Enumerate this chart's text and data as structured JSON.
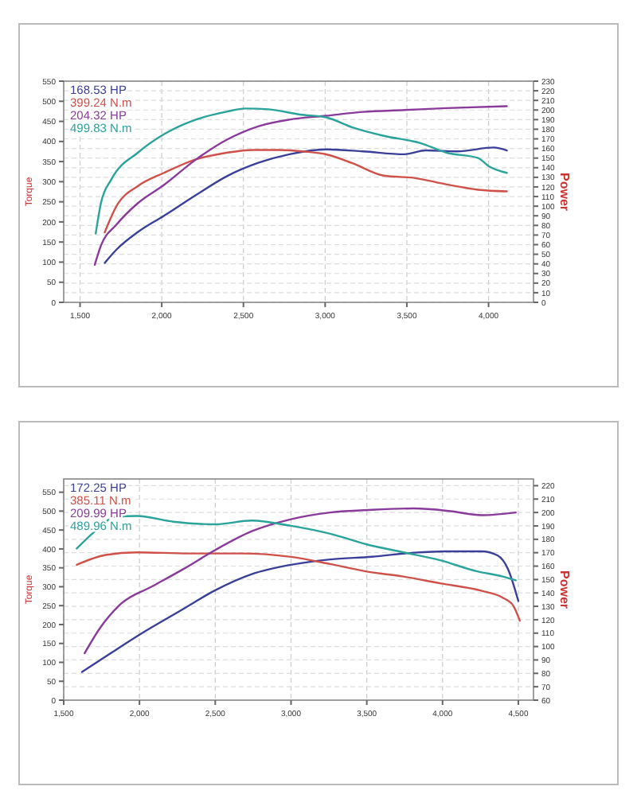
{
  "chart_data": [
    {
      "type": "line",
      "ylabel": "Torque",
      "y2label": "Power",
      "xlim": [
        1400,
        4275
      ],
      "ylim": [
        0,
        550
      ],
      "y2lim": [
        0,
        230
      ],
      "grid": true,
      "marker": "none",
      "line_style": "solid",
      "xticks": [
        {
          "value": 1500,
          "label": "1,500"
        },
        {
          "value": 2000,
          "label": "2,000"
        },
        {
          "value": 2500,
          "label": "2,500"
        },
        {
          "value": 3000,
          "label": "3,000"
        },
        {
          "value": 3500,
          "label": "3,500"
        },
        {
          "value": 4000,
          "label": "4,000"
        }
      ],
      "yticks": [
        0,
        50,
        100,
        150,
        200,
        250,
        300,
        350,
        400,
        450,
        500,
        550
      ],
      "y2ticks": [
        0,
        10,
        20,
        30,
        40,
        50,
        60,
        70,
        80,
        90,
        100,
        110,
        120,
        130,
        140,
        150,
        160,
        170,
        180,
        190,
        200,
        210,
        220,
        230
      ],
      "series": [
        {
          "name": "168.53 HP",
          "color": "#3a3f9a",
          "axis": "y2",
          "x": [
            1651,
            1724,
            1853,
            2013,
            2205,
            2397,
            2590,
            2782,
            3006,
            3231,
            3487,
            3615,
            3808,
            4032,
            4112
          ],
          "values": [
            41,
            55,
            73,
            90,
            111,
            131,
            145,
            154,
            159,
            157,
            154,
            158,
            157,
            161,
            158
          ]
        },
        {
          "name": "399.24 N.m",
          "color": "#d0504a",
          "axis": "y",
          "x": [
            1651,
            1724,
            1853,
            2013,
            2205,
            2397,
            2558,
            2718,
            2878,
            3006,
            3167,
            3359,
            3551,
            3744,
            3936,
            4112
          ],
          "values": [
            174,
            240,
            289,
            322,
            355,
            372,
            379,
            379,
            375,
            368,
            346,
            315,
            309,
            293,
            280,
            276
          ]
        },
        {
          "name": "204.32 HP",
          "color": "#8a3a9a",
          "axis": "y2",
          "x": [
            1590,
            1628,
            1724,
            1853,
            2013,
            2205,
            2397,
            2590,
            2782,
            3006,
            3231,
            3487,
            3744,
            4112
          ],
          "values": [
            39,
            59,
            81,
            103,
            122,
            148,
            169,
            183,
            190,
            194,
            198,
            200,
            202,
            204
          ]
        },
        {
          "name": "499.83 N.m",
          "color": "#2aa39a",
          "axis": "y",
          "x": [
            1596,
            1628,
            1692,
            1853,
            2013,
            2205,
            2397,
            2510,
            2654,
            2846,
            3006,
            3167,
            3359,
            3583,
            3744,
            3936,
            4000,
            4112
          ],
          "values": [
            171,
            247,
            306,
            372,
            418,
            454,
            474,
            482,
            480,
            467,
            460,
            435,
            414,
            396,
            372,
            359,
            339,
            322
          ]
        }
      ]
    },
    {
      "type": "line",
      "ylabel": "Torque",
      "y2label": "Power",
      "xlim": [
        1500,
        4600
      ],
      "ylim": [
        0,
        585
      ],
      "y2lim": [
        60,
        225
      ],
      "grid": true,
      "marker": "none",
      "line_style": "solid",
      "xticks": [
        {
          "value": 1500,
          "label": "1,500"
        },
        {
          "value": 2000,
          "label": "2,000"
        },
        {
          "value": 2500,
          "label": "2,500"
        },
        {
          "value": 3000,
          "label": "3,000"
        },
        {
          "value": 3500,
          "label": "3,500"
        },
        {
          "value": 4000,
          "label": "4,000"
        },
        {
          "value": 4500,
          "label": "4,500"
        }
      ],
      "yticks": [
        0,
        50,
        100,
        150,
        200,
        250,
        300,
        350,
        400,
        450,
        500,
        550
      ],
      "y2ticks": [
        60,
        70,
        80,
        90,
        100,
        110,
        120,
        130,
        140,
        150,
        160,
        170,
        180,
        190,
        200,
        210,
        220
      ],
      "series": [
        {
          "name": "172.25 HP",
          "color": "#3a3f9a",
          "axis": "y2",
          "x": [
            1621,
            1810,
            2017,
            2259,
            2500,
            2741,
            3000,
            3259,
            3534,
            3810,
            4017,
            4259,
            4362,
            4431,
            4500
          ],
          "values": [
            81,
            95,
            110,
            126,
            142,
            154,
            161,
            165,
            167,
            170,
            171,
            171,
            168,
            158,
            134
          ]
        },
        {
          "name": "385.11 N.m",
          "color": "#d0504a",
          "axis": "y",
          "x": [
            1586,
            1776,
            1983,
            2328,
            2672,
            3000,
            3259,
            3500,
            3741,
            3983,
            4259,
            4397,
            4466,
            4510
          ],
          "values": [
            358,
            384,
            391,
            388,
            388,
            379,
            360,
            340,
            327,
            309,
            289,
            271,
            250,
            210
          ]
        },
        {
          "name": "209.99 HP",
          "color": "#8a3a9a",
          "axis": "y2",
          "x": [
            1638,
            1741,
            1879,
            2086,
            2293,
            2500,
            2741,
            3000,
            3259,
            3534,
            3810,
            4052,
            4259,
            4483
          ],
          "values": [
            95,
            114,
            132,
            145,
            158,
            172,
            186,
            195,
            200,
            202,
            203,
            201,
            198,
            200
          ]
        },
        {
          "name": "489.96 N.m",
          "color": "#2aa39a",
          "axis": "y",
          "x": [
            1586,
            1707,
            1845,
            1983,
            2224,
            2500,
            2741,
            3000,
            3259,
            3500,
            3741,
            3983,
            4224,
            4397,
            4483
          ],
          "values": [
            401,
            447,
            485,
            487,
            472,
            465,
            475,
            461,
            440,
            412,
            391,
            370,
            341,
            327,
            317
          ]
        }
      ]
    }
  ]
}
